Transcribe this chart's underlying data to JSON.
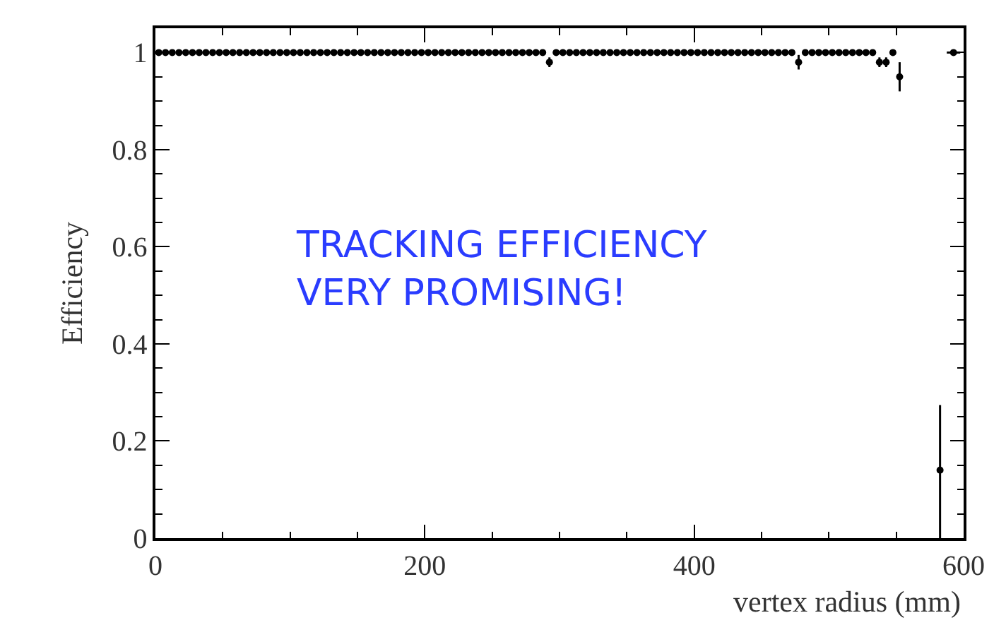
{
  "chart_data": {
    "type": "scatter",
    "xlabel": "vertex radius (mm)",
    "ylabel": "Efficiency",
    "marker": "circle",
    "annotations": [
      "TRACKING EFFICIENCY\nVERY PROMISING!"
    ],
    "xlim": [
      0,
      600
    ],
    "xticks": [
      0,
      200,
      400,
      600
    ],
    "ylim": [
      0,
      1.05
    ],
    "yticks": [
      0,
      0.2,
      0.4,
      0.6,
      0.8,
      1
    ],
    "series": [
      {
        "color": "#000000",
        "x": [
          2.5,
          7.5,
          12.5,
          17.5,
          22.5,
          27.5,
          32.5,
          37.5,
          42.5,
          47.5,
          52.5,
          57.5,
          62.5,
          67.5,
          72.5,
          77.5,
          82.5,
          87.5,
          92.5,
          97.5,
          102.5,
          107.5,
          112.5,
          117.5,
          122.5,
          127.5,
          132.5,
          137.5,
          142.5,
          147.5,
          152.5,
          157.5,
          162.5,
          167.5,
          172.5,
          177.5,
          182.5,
          187.5,
          192.5,
          197.5,
          202.5,
          207.5,
          212.5,
          217.5,
          222.5,
          227.5,
          232.5,
          237.5,
          242.5,
          247.5,
          252.5,
          257.5,
          262.5,
          267.5,
          272.5,
          277.5,
          282.5,
          287.5,
          292.5,
          297.5,
          302.5,
          307.5,
          312.5,
          317.5,
          322.5,
          327.5,
          332.5,
          337.5,
          342.5,
          347.5,
          352.5,
          357.5,
          362.5,
          367.5,
          372.5,
          377.5,
          382.5,
          387.5,
          392.5,
          397.5,
          402.5,
          407.5,
          412.5,
          417.5,
          422.5,
          427.5,
          432.5,
          437.5,
          442.5,
          447.5,
          452.5,
          457.5,
          462.5,
          467.5,
          472.5,
          477.5,
          482.5,
          487.5,
          492.5,
          497.5,
          502.5,
          507.5,
          512.5,
          517.5,
          522.5,
          527.5,
          532.5,
          537.5,
          542.5,
          547.5,
          552.5,
          582.5,
          592.5
        ],
        "values": [
          1,
          1,
          1,
          1,
          1,
          1,
          1,
          1,
          1,
          1,
          1,
          1,
          1,
          1,
          1,
          1,
          1,
          1,
          1,
          1,
          1,
          1,
          1,
          1,
          1,
          1,
          1,
          1,
          1,
          1,
          1,
          1,
          1,
          1,
          1,
          1,
          1,
          1,
          1,
          1,
          1,
          1,
          1,
          1,
          1,
          1,
          1,
          1,
          1,
          1,
          1,
          1,
          1,
          1,
          1,
          1,
          1,
          1,
          0.98,
          1,
          1,
          1,
          1,
          1,
          1,
          1,
          1,
          1,
          1,
          1,
          1,
          1,
          1,
          1,
          1,
          1,
          1,
          1,
          1,
          1,
          1,
          1,
          1,
          1,
          1,
          1,
          1,
          1,
          1,
          1,
          1,
          1,
          1,
          1,
          1,
          0.98,
          1,
          1,
          1,
          1,
          1,
          1,
          1,
          1,
          1,
          1,
          1,
          0.98,
          0.98,
          1,
          0.95,
          0.14,
          1
        ],
        "errors": [
          null,
          null,
          null,
          null,
          null,
          null,
          null,
          null,
          null,
          null,
          null,
          null,
          null,
          null,
          null,
          null,
          null,
          null,
          null,
          null,
          null,
          null,
          null,
          null,
          null,
          null,
          null,
          null,
          null,
          null,
          null,
          null,
          null,
          null,
          null,
          null,
          null,
          null,
          null,
          null,
          null,
          null,
          null,
          null,
          null,
          null,
          null,
          null,
          null,
          null,
          null,
          null,
          null,
          null,
          null,
          null,
          null,
          null,
          0.01,
          null,
          null,
          null,
          null,
          null,
          null,
          null,
          null,
          null,
          null,
          null,
          null,
          null,
          null,
          null,
          null,
          null,
          null,
          null,
          null,
          null,
          null,
          null,
          null,
          null,
          null,
          null,
          null,
          null,
          null,
          null,
          null,
          null,
          null,
          null,
          null,
          0.015,
          null,
          null,
          null,
          null,
          null,
          null,
          null,
          null,
          null,
          null,
          null,
          0.01,
          0.01,
          null,
          0.03,
          [
            0,
            0.274
          ],
          null
        ],
        "xerrors": [
          null,
          null,
          null,
          null,
          null,
          null,
          null,
          null,
          null,
          null,
          null,
          null,
          null,
          null,
          null,
          null,
          null,
          null,
          null,
          null,
          null,
          null,
          null,
          null,
          null,
          null,
          null,
          null,
          null,
          null,
          null,
          null,
          null,
          null,
          null,
          null,
          null,
          null,
          null,
          null,
          null,
          null,
          null,
          null,
          null,
          null,
          null,
          null,
          null,
          null,
          null,
          null,
          null,
          null,
          null,
          null,
          null,
          null,
          null,
          null,
          null,
          null,
          null,
          null,
          null,
          null,
          null,
          null,
          null,
          null,
          null,
          null,
          null,
          null,
          null,
          null,
          null,
          null,
          null,
          null,
          null,
          null,
          null,
          null,
          null,
          null,
          null,
          null,
          null,
          null,
          null,
          null,
          null,
          null,
          null,
          null,
          null,
          null,
          null,
          null,
          null,
          null,
          null,
          null,
          null,
          null,
          null,
          null,
          null,
          null,
          null,
          null,
          5
        ]
      }
    ]
  }
}
